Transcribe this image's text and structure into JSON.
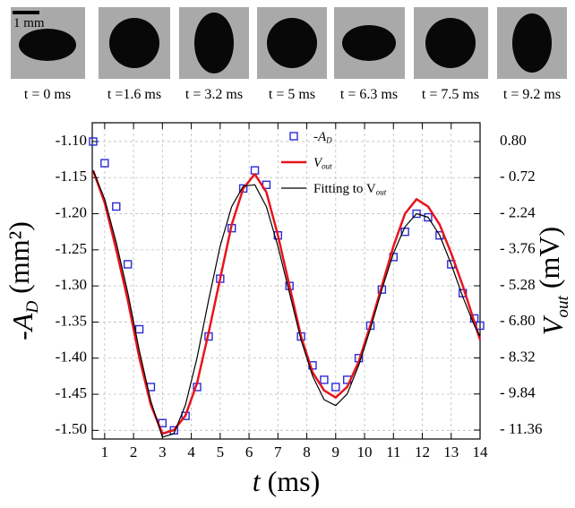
{
  "frames": [
    {
      "label": "t = 0 ms"
    },
    {
      "label": "t =1.6 ms"
    },
    {
      "label": "t = 3.2 ms"
    },
    {
      "label": "t = 5 ms"
    },
    {
      "label": "t = 6.3 ms"
    },
    {
      "label": "t = 7.5 ms"
    },
    {
      "label": "t = 9.2 ms"
    }
  ],
  "scale_bar": "1 mm",
  "chart_data": {
    "type": "line",
    "x_label": {
      "text": "t",
      "suffix": " (ms)"
    },
    "y_label": {
      "text": "-A",
      "sub": "D",
      "suffix": " (mm²)"
    },
    "y2_label": {
      "text": "V",
      "sub": "out",
      "suffix": " (mV)"
    },
    "x": [
      0.6,
      1.0,
      1.4,
      1.8,
      2.2,
      2.6,
      3.0,
      3.4,
      3.8,
      4.2,
      4.6,
      5.0,
      5.4,
      5.8,
      6.2,
      6.6,
      7.0,
      7.4,
      7.8,
      8.2,
      8.6,
      9.0,
      9.4,
      9.8,
      10.2,
      10.6,
      11.0,
      11.4,
      11.8,
      12.2,
      12.6,
      13.0,
      13.4,
      13.8,
      14.0
    ],
    "xlim": [
      0.57,
      14
    ],
    "xticks": [
      1,
      2,
      3,
      4,
      5,
      6,
      7,
      8,
      9,
      10,
      11,
      12,
      13,
      14
    ],
    "ylim": [
      -1.512,
      -1.074
    ],
    "yticks": [
      {
        "value": -1.1,
        "label": "-1.10"
      },
      {
        "value": -1.15,
        "label": "-1.15"
      },
      {
        "value": -1.2,
        "label": "-1.20"
      },
      {
        "value": -1.25,
        "label": "-1.25"
      },
      {
        "value": -1.3,
        "label": "-1.30"
      },
      {
        "value": -1.35,
        "label": "-1.35"
      },
      {
        "value": -1.4,
        "label": "-1.40"
      },
      {
        "value": -1.45,
        "label": "-1.45"
      },
      {
        "value": -1.5,
        "label": "-1.50"
      }
    ],
    "y2lim": [
      -11.738,
      1.593
    ],
    "y2ticks": [
      {
        "value": 0.8,
        "label": "0.80"
      },
      {
        "value": -0.72,
        "label": "- 0.72"
      },
      {
        "value": -2.24,
        "label": "- 2.24"
      },
      {
        "value": -3.76,
        "label": "- 3.76"
      },
      {
        "value": -5.28,
        "label": "- 5.28"
      },
      {
        "value": -6.8,
        "label": "- 6.80"
      },
      {
        "value": -8.32,
        "label": "- 8.32"
      },
      {
        "value": -9.84,
        "label": "- 9.84"
      },
      {
        "value": -11.36,
        "label": "- 11.36"
      }
    ],
    "grid": true,
    "series": [
      {
        "name": {
          "text": "-A",
          "sub": "D"
        },
        "color": "#2b2bd6",
        "marker": "square",
        "values": [
          -1.1,
          -1.13,
          -1.19,
          -1.27,
          -1.36,
          -1.44,
          -1.49,
          -1.5,
          -1.48,
          -1.44,
          -1.37,
          -1.29,
          -1.22,
          -1.165,
          -1.14,
          -1.16,
          -1.23,
          -1.3,
          -1.37,
          -1.41,
          -1.43,
          -1.44,
          -1.43,
          -1.4,
          -1.355,
          -1.305,
          -1.26,
          -1.225,
          -1.2,
          -1.205,
          -1.23,
          -1.27,
          -1.31,
          -1.345,
          -1.355
        ]
      },
      {
        "name": {
          "text": "V",
          "sub": "out"
        },
        "color": "#e8141e",
        "axis": "y2",
        "marker": "none",
        "width": 2.5,
        "values": [
          -0.42,
          -1.78,
          -3.76,
          -5.89,
          -8.32,
          -10.3,
          -11.51,
          -11.36,
          -10.75,
          -9.38,
          -7.26,
          -4.98,
          -2.7,
          -1.18,
          -0.57,
          -1.33,
          -3.15,
          -5.28,
          -7.41,
          -8.93,
          -9.69,
          -9.99,
          -9.54,
          -8.47,
          -6.95,
          -5.28,
          -3.61,
          -2.24,
          -1.63,
          -1.94,
          -2.7,
          -3.91,
          -5.28,
          -6.8,
          -7.56
        ]
      },
      {
        "name": {
          "text": "Fitting to V",
          "sub": "out"
        },
        "color": "#000000",
        "axis": "y2",
        "marker": "none",
        "width": 1.2,
        "values": [
          -0.42,
          -1.63,
          -3.46,
          -5.58,
          -8.02,
          -10.14,
          -11.66,
          -11.51,
          -10.3,
          -8.32,
          -5.89,
          -3.61,
          -1.94,
          -1.08,
          -1.02,
          -1.94,
          -3.61,
          -5.58,
          -7.56,
          -9.08,
          -10.08,
          -10.33,
          -9.84,
          -8.62,
          -7.1,
          -5.43,
          -3.91,
          -2.79,
          -2.24,
          -2.39,
          -3.15,
          -4.37,
          -5.74,
          -6.95,
          -7.41
        ]
      }
    ]
  }
}
